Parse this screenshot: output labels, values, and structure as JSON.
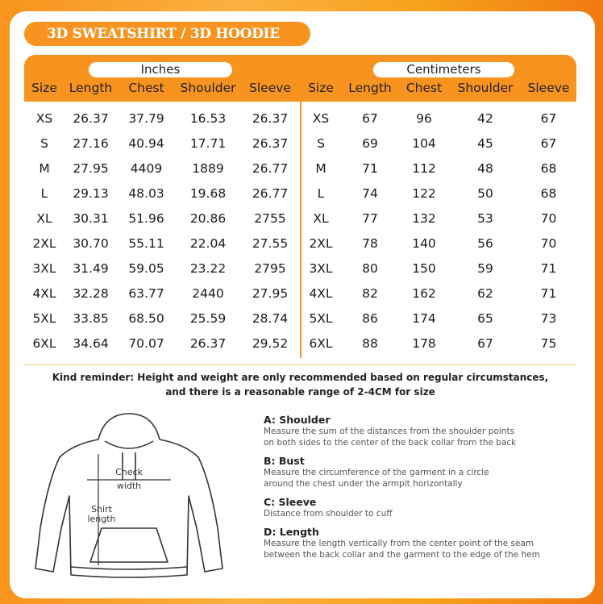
{
  "title": "3D SWEATSHIRT / 3D HOODIE",
  "colors": {
    "accent": "#f7931e",
    "background": "#ffffff"
  },
  "units": {
    "inches": "Inches",
    "centimeters": "Centimeters"
  },
  "columns": [
    "Size",
    "Length",
    "Chest",
    "Shoulder",
    "Sleeve"
  ],
  "inches_rows": [
    [
      "XS",
      "26.37",
      "37.79",
      "16.53",
      "26.37"
    ],
    [
      "S",
      "27.16",
      "40.94",
      "17.71",
      "26.37"
    ],
    [
      "M",
      "27.95",
      "4409",
      "1889",
      "26.77"
    ],
    [
      "L",
      "29.13",
      "48.03",
      "19.68",
      "26.77"
    ],
    [
      "XL",
      "30.31",
      "51.96",
      "20.86",
      "2755"
    ],
    [
      "2XL",
      "30.70",
      "55.11",
      "22.04",
      "27.55"
    ],
    [
      "3XL",
      "31.49",
      "59.05",
      "23.22",
      "2795"
    ],
    [
      "4XL",
      "32.28",
      "63.77",
      "2440",
      "27.95"
    ],
    [
      "5XL",
      "33.85",
      "68.50",
      "25.59",
      "28.74"
    ],
    [
      "6XL",
      "34.64",
      "70.07",
      "26.37",
      "29.52"
    ]
  ],
  "cm_rows": [
    [
      "XS",
      "67",
      "96",
      "42",
      "67"
    ],
    [
      "S",
      "69",
      "104",
      "45",
      "67"
    ],
    [
      "M",
      "71",
      "112",
      "48",
      "68"
    ],
    [
      "L",
      "74",
      "122",
      "50",
      "68"
    ],
    [
      "XL",
      "77",
      "132",
      "53",
      "70"
    ],
    [
      "2XL",
      "78",
      "140",
      "56",
      "70"
    ],
    [
      "3XL",
      "80",
      "150",
      "59",
      "71"
    ],
    [
      "4XL",
      "82",
      "162",
      "62",
      "71"
    ],
    [
      "5XL",
      "86",
      "174",
      "65",
      "73"
    ],
    [
      "6XL",
      "88",
      "178",
      "67",
      "75"
    ]
  ],
  "reminder": {
    "line1": "Kind reminder: Height and weight are only recommended based on regular circumstances,",
    "line2": "and there is a reasonable range of 2-4CM for size"
  },
  "diagram": {
    "check_width": [
      "Check",
      "width"
    ],
    "shirt_length": [
      "Shirt",
      "length"
    ]
  },
  "definitions": [
    {
      "title": "A: Shoulder",
      "lines": [
        "Measure the sum of the distances from the shoulder points",
        "on both sides to the center of the back collar from the back"
      ]
    },
    {
      "title": "B: Bust",
      "lines": [
        "Measure the circumference of the garment in a circle",
        "around the chest under the armpit horizontally"
      ]
    },
    {
      "title": "C: Sleeve",
      "lines": [
        "Distance from shoulder to cuff"
      ]
    },
    {
      "title": "D: Length",
      "lines": [
        "Measure the length vertically from the center point of the seam",
        "between the back collar and the garment to the edge of the hem"
      ]
    }
  ]
}
